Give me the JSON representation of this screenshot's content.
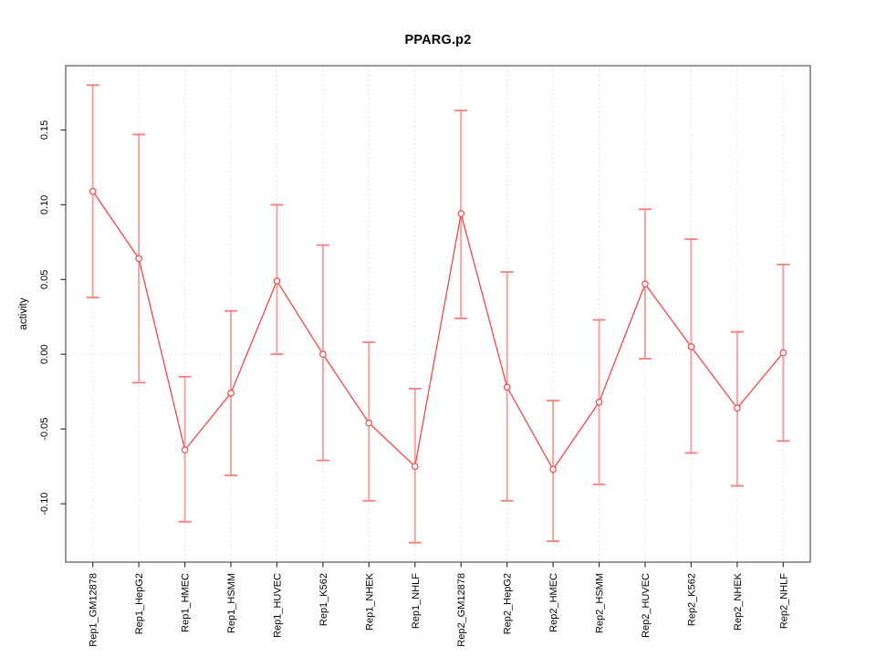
{
  "figure": {
    "title": "PPARG.p2",
    "ylabel": "activity"
  },
  "chart_data": {
    "type": "line",
    "title": "PPARG.p2",
    "xlabel": "",
    "ylabel": "activity",
    "legend": "none",
    "grid": "vertical dashed gridline at each category; dotted horizontal line at y=0",
    "categories": [
      "Rep1_GM12878",
      "Rep1_HepG2",
      "Rep1_HMEC",
      "Rep1_HSMM",
      "Rep1_HUVEC",
      "Rep1_K562",
      "Rep1_NHEK",
      "Rep1_NHLF",
      "Rep2_GM12878",
      "Rep2_HepG2",
      "Rep2_HMEC",
      "Rep2_HSMM",
      "Rep2_HUVEC",
      "Rep2_K562",
      "Rep2_NHEK",
      "Rep2_NHLF"
    ],
    "series": [
      {
        "name": "activity",
        "values": [
          0.109,
          0.064,
          -0.064,
          -0.026,
          0.049,
          0.0,
          -0.046,
          -0.075,
          0.094,
          -0.022,
          -0.077,
          -0.032,
          0.047,
          0.005,
          -0.036,
          0.001
        ],
        "upper": [
          0.18,
          0.147,
          -0.015,
          0.029,
          0.1,
          0.073,
          0.008,
          -0.023,
          0.163,
          0.055,
          -0.031,
          0.023,
          0.097,
          0.077,
          0.015,
          0.06
        ],
        "lower": [
          0.038,
          -0.019,
          -0.112,
          -0.081,
          0.0,
          -0.071,
          -0.098,
          -0.126,
          0.024,
          -0.098,
          -0.125,
          -0.087,
          -0.003,
          -0.066,
          -0.088,
          -0.058
        ]
      }
    ],
    "ylim": [
      -0.139,
      0.193
    ],
    "y_ticks": [
      -0.1,
      -0.05,
      0.0,
      0.05,
      0.1,
      0.15
    ],
    "y_tick_labels": [
      "-0.10",
      "-0.05",
      "0.00",
      "0.05",
      "0.10",
      "0.15"
    ],
    "colors": {
      "series": "#ff4444",
      "error_bar": "#f7a2a2",
      "cap": "#f77c7c",
      "grid": "#e2e2e2",
      "zero_line": "#d8d8d8",
      "frame": "#555555",
      "tick": "#333333",
      "text": "#000000"
    }
  }
}
